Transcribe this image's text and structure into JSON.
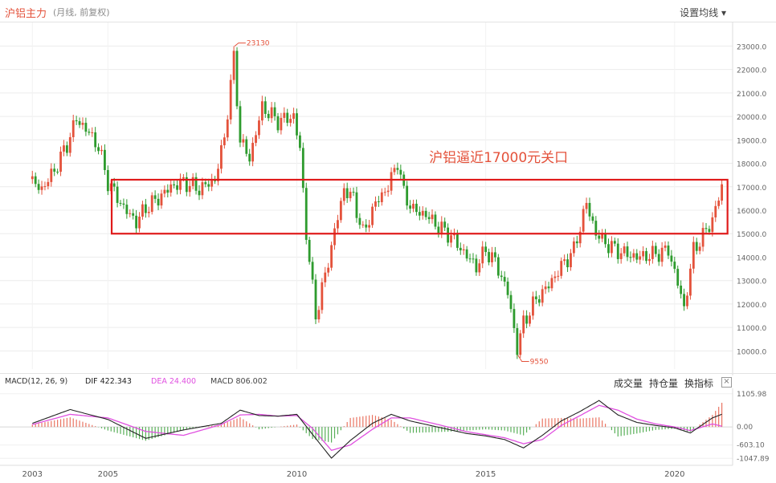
{
  "header": {
    "title": "沪铝主力",
    "subtitle": "(月线, 前复权)",
    "settings_label": "设置均线"
  },
  "macd_header": {
    "name": "MACD(12, 26, 9)",
    "diff": "DIF 422.343",
    "dea": "DEA 24.400",
    "macd": "MACD 806.002",
    "tabs": [
      "成交量",
      "持仓量",
      "换指标"
    ],
    "close": "×"
  },
  "colors": {
    "up": "#e4523b",
    "down": "#2e9b2e",
    "dif": "#222222",
    "dea": "#e050e0",
    "box": "#e01b1b"
  },
  "chart_data": [
    {
      "type": "candlestick",
      "annotation": "沪铝逼近17000元关口",
      "high_label": "23130",
      "low_label": "9550",
      "y_ticks": [
        "23000.0",
        "22000.0",
        "21000.0",
        "20000.0",
        "19000.0",
        "18000.0",
        "17000.0",
        "16000.0",
        "15000.0",
        "14000.0",
        "13000.0",
        "12000.0",
        "11000.0",
        "10000.0"
      ],
      "x_ticks": [
        "2003",
        "2005",
        "2010",
        "2015",
        "2020"
      ],
      "ylim": [
        9500,
        23800
      ],
      "highlight_range": [
        15000,
        17300
      ],
      "points": [
        {
          "x": "2003-01",
          "y": 17200
        },
        {
          "x": "2003-04",
          "y": 16900
        },
        {
          "x": "2003-08",
          "y": 17700
        },
        {
          "x": "2003-12",
          "y": 18800
        },
        {
          "x": "2004-03",
          "y": 19900
        },
        {
          "x": "2004-07",
          "y": 19300
        },
        {
          "x": "2004-10",
          "y": 18700
        },
        {
          "x": "2005-01",
          "y": 17200
        },
        {
          "x": "2005-06",
          "y": 16100
        },
        {
          "x": "2005-10",
          "y": 15500
        },
        {
          "x": "2006-01",
          "y": 16100
        },
        {
          "x": "2006-05",
          "y": 16500
        },
        {
          "x": "2006-09",
          "y": 17000
        },
        {
          "x": "2007-01",
          "y": 17200
        },
        {
          "x": "2007-06",
          "y": 16900
        },
        {
          "x": "2007-11",
          "y": 17300
        },
        {
          "x": "2008-02",
          "y": 19100
        },
        {
          "x": "2008-05",
          "y": 22500
        },
        {
          "x": "2008-07",
          "y": 19000
        },
        {
          "x": "2008-10",
          "y": 18200
        },
        {
          "x": "2009-02",
          "y": 20400
        },
        {
          "x": "2009-07",
          "y": 19800
        },
        {
          "x": "2009-12",
          "y": 20000
        },
        {
          "x": "2010-02",
          "y": 18600
        },
        {
          "x": "2010-04",
          "y": 15000
        },
        {
          "x": "2010-07",
          "y": 11500
        },
        {
          "x": "2010-10",
          "y": 13200
        },
        {
          "x": "2011-01",
          "y": 15100
        },
        {
          "x": "2011-04",
          "y": 16900
        },
        {
          "x": "2011-07",
          "y": 16500
        },
        {
          "x": "2011-10",
          "y": 15000
        },
        {
          "x": "2012-02",
          "y": 16300
        },
        {
          "x": "2012-06",
          "y": 17000
        },
        {
          "x": "2012-09",
          "y": 18100
        },
        {
          "x": "2012-11",
          "y": 16700
        },
        {
          "x": "2013-02",
          "y": 16000
        },
        {
          "x": "2013-06",
          "y": 15800
        },
        {
          "x": "2013-10",
          "y": 15300
        },
        {
          "x": "2014-02",
          "y": 14900
        },
        {
          "x": "2014-06",
          "y": 14200
        },
        {
          "x": "2014-10",
          "y": 13600
        },
        {
          "x": "2015-01",
          "y": 14300
        },
        {
          "x": "2015-04",
          "y": 13800
        },
        {
          "x": "2015-08",
          "y": 12500
        },
        {
          "x": "2015-11",
          "y": 10100
        },
        {
          "x": "2016-01",
          "y": 11200
        },
        {
          "x": "2016-05",
          "y": 12200
        },
        {
          "x": "2016-09",
          "y": 12800
        },
        {
          "x": "2017-01",
          "y": 13600
        },
        {
          "x": "2017-05",
          "y": 14300
        },
        {
          "x": "2017-09",
          "y": 16300
        },
        {
          "x": "2017-12",
          "y": 15000
        },
        {
          "x": "2018-04",
          "y": 14500
        },
        {
          "x": "2018-08",
          "y": 14200
        },
        {
          "x": "2019-01",
          "y": 14000
        },
        {
          "x": "2019-06",
          "y": 14100
        },
        {
          "x": "2019-11",
          "y": 14300
        },
        {
          "x": "2020-02",
          "y": 12900
        },
        {
          "x": "2020-04",
          "y": 11800
        },
        {
          "x": "2020-07",
          "y": 14300
        },
        {
          "x": "2020-10",
          "y": 14900
        },
        {
          "x": "2021-01",
          "y": 15600
        },
        {
          "x": "2021-04",
          "y": 17000
        }
      ]
    },
    {
      "type": "macd",
      "y_ticks": [
        "1105.98",
        "0.00",
        "-603.10",
        "-1047.89"
      ],
      "ylim": [
        -1120,
        1180
      ],
      "x": [
        "2003-01",
        "2004-01",
        "2005-01",
        "2006-01",
        "2007-01",
        "2008-01",
        "2008-07",
        "2009-01",
        "2009-07",
        "2010-01",
        "2010-06",
        "2010-12",
        "2011-06",
        "2012-01",
        "2012-07",
        "2013-01",
        "2013-07",
        "2014-01",
        "2014-07",
        "2015-01",
        "2015-07",
        "2016-01",
        "2016-07",
        "2017-01",
        "2017-07",
        "2018-01",
        "2018-07",
        "2019-01",
        "2019-07",
        "2020-01",
        "2020-06",
        "2021-01",
        "2021-04"
      ],
      "dif": [
        120,
        580,
        250,
        -380,
        -100,
        120,
        560,
        380,
        360,
        420,
        -250,
        -1040,
        -450,
        120,
        420,
        200,
        60,
        -80,
        -220,
        -300,
        -420,
        -700,
        -280,
        200,
        520,
        880,
        400,
        150,
        50,
        -30,
        -200,
        300,
        422
      ],
      "dea": [
        80,
        420,
        300,
        -150,
        -280,
        80,
        400,
        420,
        360,
        380,
        -50,
        -780,
        -600,
        -80,
        300,
        300,
        150,
        0,
        -160,
        -260,
        -360,
        -560,
        -420,
        50,
        380,
        720,
        560,
        260,
        100,
        0,
        -120,
        100,
        24
      ],
      "histogram": [
        80,
        320,
        -120,
        -460,
        -100,
        80,
        320,
        -80,
        0,
        80,
        -400,
        -520,
        300,
        400,
        240,
        -200,
        -180,
        -160,
        -120,
        -80,
        -120,
        -280,
        280,
        300,
        280,
        320,
        -320,
        -220,
        -100,
        -60,
        -160,
        400,
        806
      ]
    }
  ]
}
